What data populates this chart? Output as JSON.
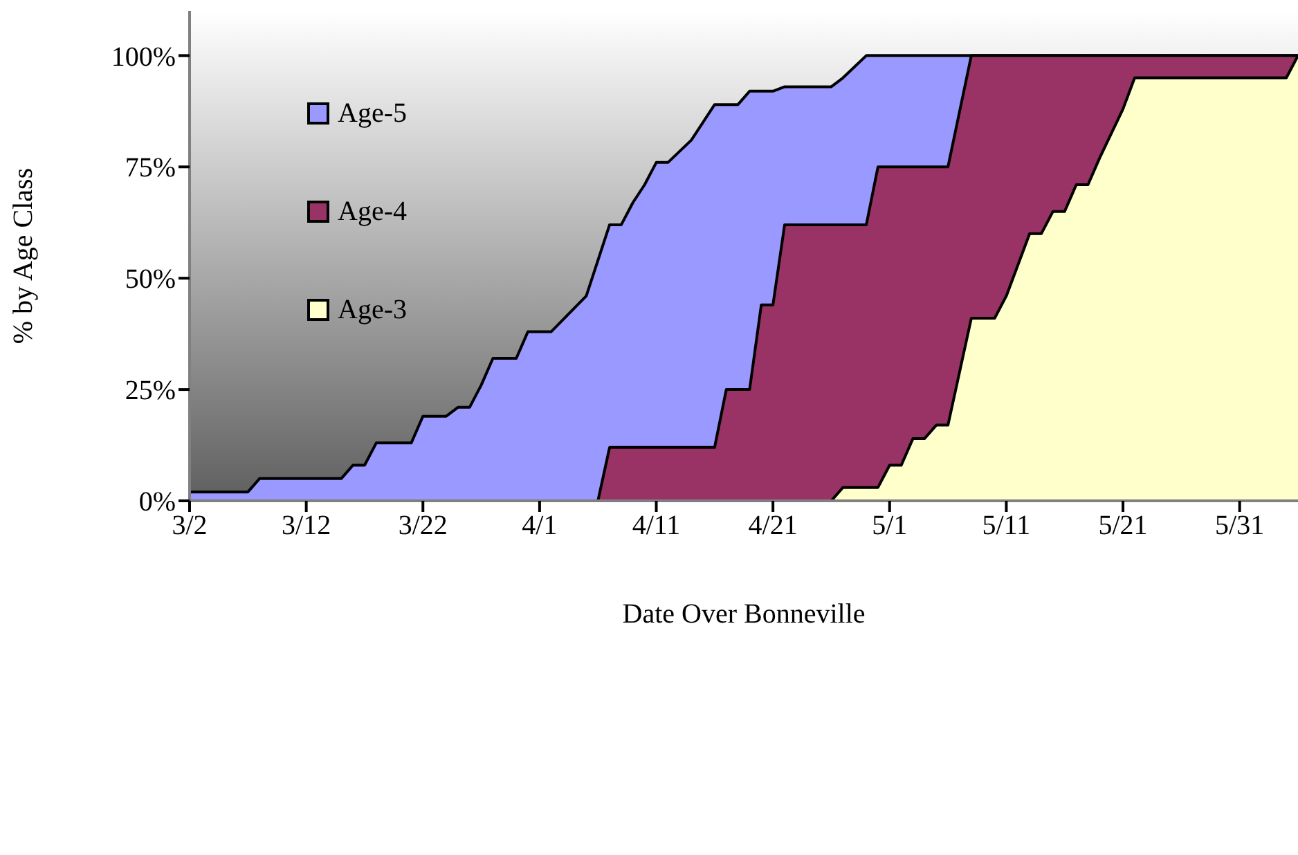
{
  "chart_data": {
    "type": "area",
    "xlabel": "Date Over Bonneville",
    "ylabel": "% by Age Class",
    "xlim": [
      "--03-02",
      "--06-05"
    ],
    "xticks": [
      {
        "value": "--03-02",
        "label": "3/2"
      },
      {
        "value": "--03-12",
        "label": "3/12"
      },
      {
        "value": "--03-22",
        "label": "3/22"
      },
      {
        "value": "--04-01",
        "label": "4/1"
      },
      {
        "value": "--04-11",
        "label": "4/11"
      },
      {
        "value": "--04-21",
        "label": "4/21"
      },
      {
        "value": "--05-01",
        "label": "5/1"
      },
      {
        "value": "--05-11",
        "label": "5/11"
      },
      {
        "value": "--05-21",
        "label": "5/21"
      },
      {
        "value": "--05-31",
        "label": "5/31"
      }
    ],
    "ylim": [
      0,
      110
    ],
    "yticks": [
      {
        "value": 0,
        "label": "0%"
      },
      {
        "value": 25,
        "label": "25%"
      },
      {
        "value": 50,
        "label": "50%"
      },
      {
        "value": 75,
        "label": "75%"
      },
      {
        "value": 100,
        "label": "100%"
      }
    ],
    "grid": false,
    "legend": "top left",
    "marker": "none",
    "line_style": "solid",
    "series": [
      {
        "name": "Age-5",
        "color": "#9999ff",
        "x": [
          "--03-02",
          "--03-07",
          "--03-08",
          "--03-15",
          "--03-16",
          "--03-17",
          "--03-18",
          "--03-21",
          "--03-22",
          "--03-24",
          "--03-25",
          "--03-26",
          "--03-27",
          "--03-28",
          "--03-30",
          "--03-31",
          "--04-02",
          "--04-05",
          "--04-06",
          "--04-07",
          "--04-08",
          "--04-09",
          "--04-10",
          "--04-11",
          "--04-12",
          "--04-14",
          "--04-16",
          "--04-18",
          "--04-19",
          "--04-21",
          "--04-22",
          "--04-26",
          "--04-27",
          "--04-29",
          "--06-05"
        ],
        "values": [
          2,
          2,
          5,
          5,
          8,
          8,
          13,
          13,
          19,
          19,
          21,
          21,
          26,
          32,
          32,
          38,
          38,
          46,
          54,
          62,
          62,
          67,
          71,
          76,
          76,
          81,
          89,
          89,
          92,
          92,
          93,
          93,
          95,
          100,
          100
        ]
      },
      {
        "name": "Age-4",
        "color": "#993366",
        "x": [
          "--04-06",
          "--04-07",
          "--04-16",
          "--04-17",
          "--04-19",
          "--04-20",
          "--04-21",
          "--04-22",
          "--04-29",
          "--04-30",
          "--05-06",
          "--05-08",
          "--06-05"
        ],
        "values": [
          0,
          12,
          12,
          25,
          25,
          44,
          44,
          62,
          62,
          75,
          75,
          100,
          100
        ]
      },
      {
        "name": "Age-3",
        "color": "#ffffcc",
        "x": [
          "--04-26",
          "--04-27",
          "--04-30",
          "--05-01",
          "--05-02",
          "--05-03",
          "--05-04",
          "--05-05",
          "--05-06",
          "--05-08",
          "--05-10",
          "--05-11",
          "--05-13",
          "--05-14",
          "--05-15",
          "--05-16",
          "--05-17",
          "--05-18",
          "--05-19",
          "--05-21",
          "--05-22",
          "--06-04",
          "--06-05"
        ],
        "values": [
          0,
          3,
          3,
          8,
          8,
          14,
          14,
          17,
          17,
          41,
          41,
          46,
          60,
          60,
          65,
          65,
          71,
          71,
          77,
          88,
          95,
          95,
          100
        ]
      }
    ]
  }
}
